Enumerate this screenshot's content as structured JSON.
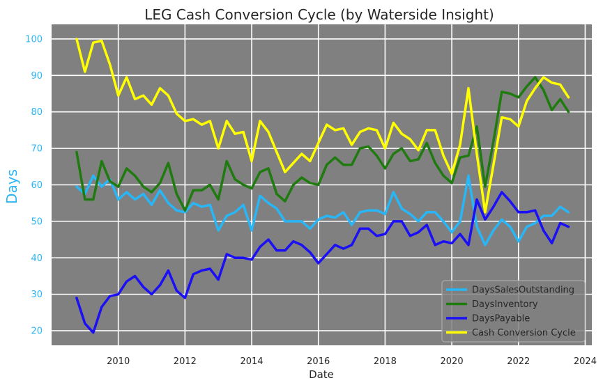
{
  "chart_data": {
    "type": "line",
    "title": "LEG Cash Conversion Cycle (by Waterside Insight)",
    "xlabel": "Date",
    "ylabel": "Days",
    "xlim": [
      2008.0,
      2024.2
    ],
    "ylim": [
      16,
      104
    ],
    "x_ticks": [
      2010,
      2012,
      2014,
      2016,
      2018,
      2020,
      2022,
      2024
    ],
    "y_ticks": [
      20,
      30,
      40,
      50,
      60,
      70,
      80,
      90,
      100
    ],
    "grid": true,
    "background": "#808080",
    "legend_position": "bottom-right",
    "x": [
      2008.75,
      2009.0,
      2009.25,
      2009.5,
      2009.75,
      2010.0,
      2010.25,
      2010.5,
      2010.75,
      2011.0,
      2011.25,
      2011.5,
      2011.75,
      2012.0,
      2012.25,
      2012.5,
      2012.75,
      2013.0,
      2013.25,
      2013.5,
      2013.75,
      2014.0,
      2014.25,
      2014.5,
      2014.75,
      2015.0,
      2015.25,
      2015.5,
      2015.75,
      2016.0,
      2016.25,
      2016.5,
      2016.75,
      2017.0,
      2017.25,
      2017.5,
      2017.75,
      2018.0,
      2018.25,
      2018.5,
      2018.75,
      2019.0,
      2019.25,
      2019.5,
      2019.75,
      2020.0,
      2020.25,
      2020.5,
      2020.75,
      2021.0,
      2021.25,
      2021.5,
      2021.75,
      2022.0,
      2022.25,
      2022.5,
      2022.75,
      2023.0,
      2023.25,
      2023.5
    ],
    "series": [
      {
        "name": "DaysSalesOutstanding",
        "color": "#29b6f6",
        "values": [
          59.5,
          57.5,
          62.5,
          59.5,
          61.5,
          56.0,
          58.0,
          56.0,
          57.5,
          54.5,
          58.5,
          55.0,
          53.0,
          52.5,
          55.0,
          54.0,
          54.5,
          47.5,
          51.5,
          52.5,
          54.5,
          47.5,
          57.0,
          55.0,
          53.5,
          50.0,
          50.0,
          50.0,
          48.0,
          50.5,
          51.5,
          51.0,
          52.5,
          49.0,
          52.5,
          53.0,
          53.0,
          52.0,
          58.0,
          53.5,
          52.0,
          50.0,
          52.5,
          52.5,
          50.0,
          47.0,
          50.0,
          62.5,
          48.5,
          43.5,
          47.5,
          50.5,
          48.5,
          44.5,
          48.5,
          49.5,
          51.5,
          51.5,
          54.0,
          52.5
        ]
      },
      {
        "name": "DaysInventory",
        "color": "#1f7a0f",
        "values": [
          69.0,
          56.0,
          56.0,
          66.5,
          61.0,
          59.5,
          64.5,
          62.5,
          59.5,
          58.0,
          60.5,
          66.0,
          57.5,
          53.0,
          58.5,
          58.5,
          60.0,
          56.0,
          66.5,
          61.5,
          60.0,
          59.0,
          63.5,
          64.5,
          57.5,
          55.5,
          60.0,
          62.0,
          60.5,
          60.0,
          65.5,
          67.5,
          65.5,
          65.5,
          70.0,
          70.5,
          68.0,
          64.5,
          68.5,
          70.0,
          66.5,
          67.0,
          71.5,
          66.0,
          62.5,
          60.5,
          67.5,
          68.0,
          76.0,
          59.5,
          72.0,
          85.5,
          85.0,
          84.0,
          87.0,
          89.5,
          86.0,
          80.5,
          83.5,
          80.0
        ]
      },
      {
        "name": "DaysPayable",
        "color": "#1a0ff5",
        "values": [
          29.0,
          22.0,
          19.5,
          26.5,
          29.5,
          30.0,
          33.5,
          35.0,
          32.0,
          30.0,
          32.5,
          36.5,
          31.0,
          29.0,
          35.5,
          36.5,
          37.0,
          34.0,
          41.0,
          40.0,
          40.0,
          39.5,
          43.0,
          45.0,
          42.0,
          42.0,
          44.5,
          43.5,
          41.5,
          38.5,
          41.0,
          43.5,
          42.5,
          43.5,
          48.0,
          48.0,
          46.0,
          46.5,
          50.0,
          50.0,
          46.0,
          47.0,
          49.0,
          43.5,
          44.5,
          44.0,
          46.5,
          43.5,
          56.0,
          50.5,
          54.0,
          58.0,
          55.5,
          52.5,
          52.5,
          53.0,
          47.5,
          44.0,
          49.5,
          48.5
        ]
      },
      {
        "name": "Cash Conversion Cycle",
        "color": "#ffff00",
        "values": [
          100.0,
          91.0,
          99.0,
          99.5,
          93.0,
          84.5,
          89.5,
          83.5,
          84.5,
          82.0,
          86.5,
          84.5,
          79.5,
          77.5,
          78.0,
          76.5,
          77.5,
          70.0,
          77.5,
          74.0,
          74.5,
          66.5,
          77.5,
          74.5,
          69.0,
          63.5,
          66.0,
          68.5,
          66.5,
          71.5,
          76.5,
          75.0,
          75.5,
          71.0,
          74.5,
          75.5,
          75.0,
          70.0,
          77.0,
          74.0,
          72.5,
          69.5,
          75.0,
          75.0,
          68.0,
          63.0,
          71.0,
          86.5,
          68.5,
          52.5,
          65.5,
          78.5,
          78.0,
          76.0,
          83.0,
          86.5,
          89.5,
          88.0,
          87.5,
          84.0
        ]
      }
    ]
  }
}
